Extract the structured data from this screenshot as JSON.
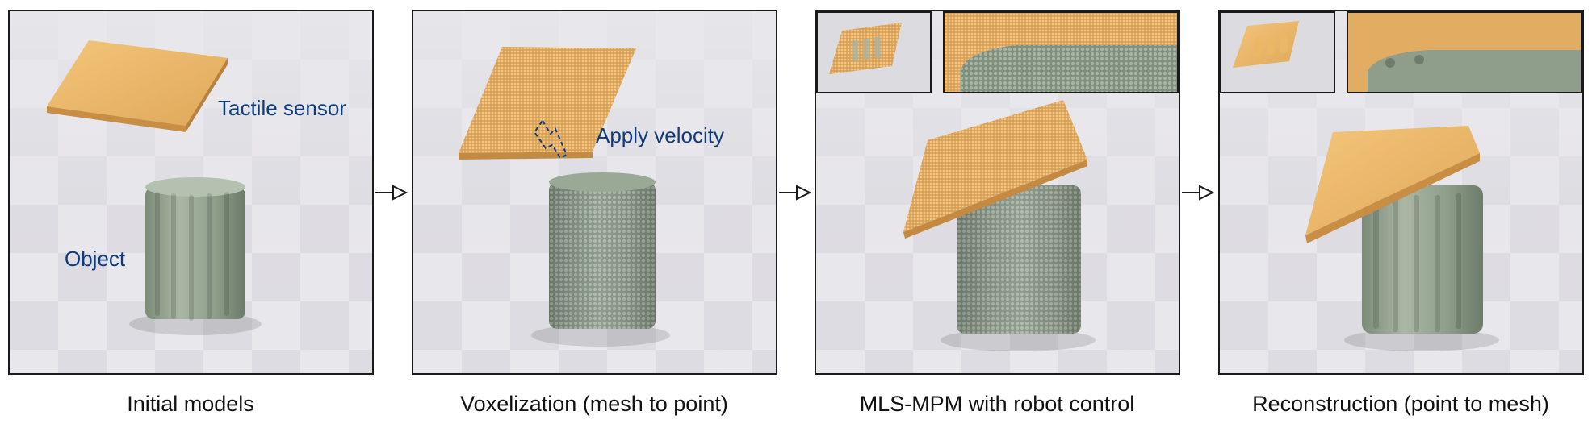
{
  "panels": [
    {
      "caption": "Initial models",
      "labels": {
        "sensor": "Tactile sensor",
        "object": "Object"
      }
    },
    {
      "caption": "Voxelization (mesh to point)",
      "labels": {
        "velocity": "Apply velocity"
      }
    },
    {
      "caption": "MLS-MPM with robot control"
    },
    {
      "caption": "Reconstruction (point to mesh)"
    }
  ],
  "colors": {
    "label": "#0f3b7d",
    "sensor": "#e7b56a",
    "object": "#8b9c87",
    "border": "#1a1a1a"
  },
  "icons": {
    "flow_arrow": "right-triangle-arrow-icon",
    "velocity": "dashed-down-arrow-icon"
  }
}
